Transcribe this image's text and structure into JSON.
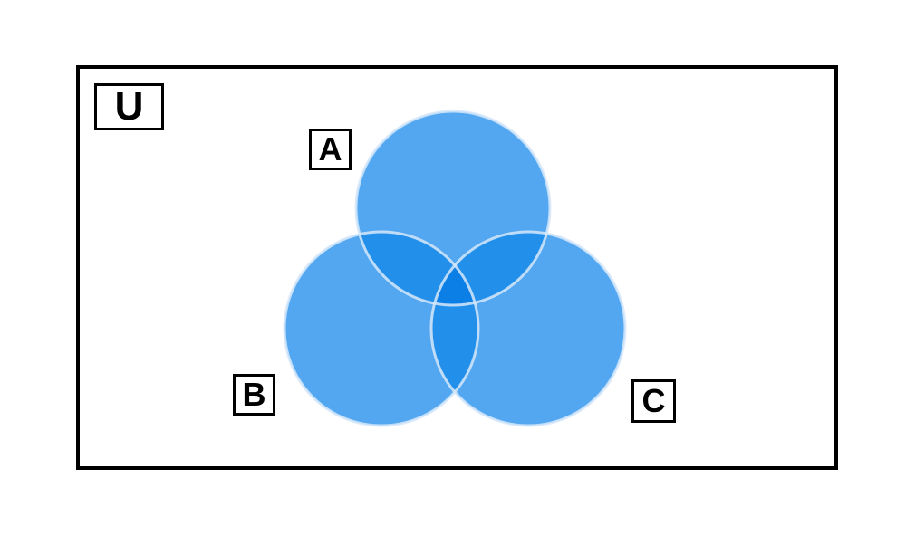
{
  "diagram": {
    "type": "venn-3-set",
    "universe_label": "U",
    "sets": [
      {
        "name": "A"
      },
      {
        "name": "B"
      },
      {
        "name": "C"
      }
    ]
  },
  "colors": {
    "circle_fill": "#52a7f0",
    "pair_overlap_fill": "#2290ea",
    "triple_overlap_fill": "#0c7fe6",
    "outline": "#d6e8fa",
    "frame": "#000000",
    "background": "#ffffff"
  }
}
